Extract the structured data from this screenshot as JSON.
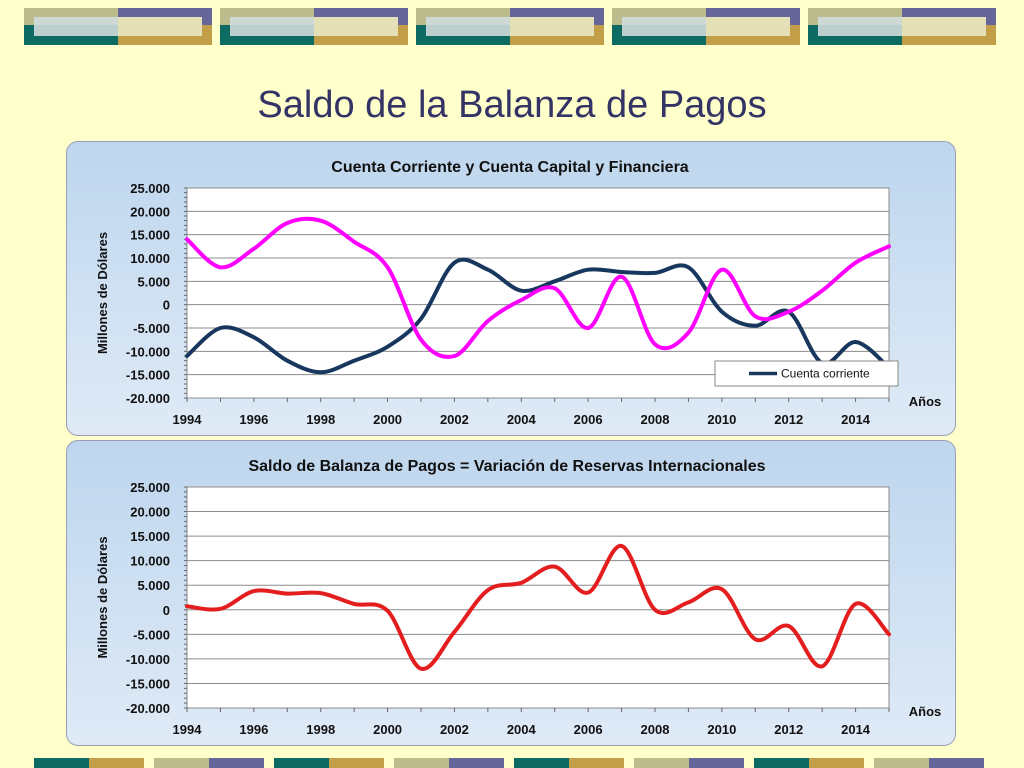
{
  "slide": {
    "title": "Saldo de la Balanza de Pagos"
  },
  "decor_colors": {
    "navy": "#66669a",
    "khaki": "#bcbc8c",
    "teal": "#0e6b64",
    "gold": "#c29e48",
    "light_blue": "#cfdcdc",
    "light_khaki": "#e6e0b4"
  },
  "chart_data": [
    {
      "type": "line",
      "title": "Cuenta Corriente y Cuenta Capital y Financiera",
      "xlabel": "Años",
      "ylabel": "Millones de Dólares",
      "xlim": [
        1994,
        2015
      ],
      "ylim": [
        -20000,
        25000
      ],
      "y_ticks": [
        25000,
        20000,
        15000,
        10000,
        5000,
        0,
        -5000,
        -10000,
        -15000,
        -20000
      ],
      "y_tick_labels": [
        "25.000",
        "20.000",
        "15.000",
        "10.000",
        "5.000",
        "0",
        "-5.000",
        "-10.000",
        "-15.000",
        "-20.000"
      ],
      "x_ticks": [
        "1994",
        "1996",
        "1998",
        "2000",
        "2002",
        "2004",
        "2006",
        "2008",
        "2010",
        "2012",
        "2014"
      ],
      "grid": true,
      "legend": "bottom-right",
      "series": [
        {
          "name": "Cuenta corriente",
          "color": "#17375e",
          "in_legend": true,
          "x": [
            1994,
            1995,
            1996,
            1997,
            1998,
            1999,
            2000,
            2001,
            2002,
            2003,
            2004,
            2005,
            2006,
            2007,
            2008,
            2009,
            2010,
            2011,
            2012,
            2013,
            2014,
            2015
          ],
          "y": [
            -11000,
            -5000,
            -7000,
            -12000,
            -14500,
            -12000,
            -9000,
            -3000,
            9000,
            7500,
            3000,
            5000,
            7500,
            7000,
            6800,
            8000,
            -1500,
            -4500,
            -1500,
            -12500,
            -8000,
            -13500
          ]
        },
        {
          "color": "#ff00ff",
          "in_legend": false,
          "x": [
            1994,
            1995,
            1996,
            1997,
            1998,
            1999,
            2000,
            2001,
            2002,
            2003,
            2004,
            2005,
            2006,
            2007,
            2008,
            2009,
            2010,
            2011,
            2012,
            2013,
            2014,
            2015
          ],
          "y": [
            14000,
            8000,
            12000,
            17500,
            18000,
            13500,
            8000,
            -7500,
            -11000,
            -3500,
            1000,
            3500,
            -5000,
            6000,
            -8500,
            -6000,
            7500,
            -2500,
            -1500,
            3000,
            9000,
            12500
          ]
        }
      ]
    },
    {
      "type": "line",
      "title": "Saldo de Balanza de Pagos = Variación de Reservas Internacionales",
      "xlabel": "Años",
      "ylabel": "Millones de Dólares",
      "xlim": [
        1994,
        2015
      ],
      "ylim": [
        -20000,
        25000
      ],
      "y_ticks": [
        25000,
        20000,
        15000,
        10000,
        5000,
        0,
        -5000,
        -10000,
        -15000,
        -20000
      ],
      "y_tick_labels": [
        "25.000",
        "20.000",
        "15.000",
        "10.000",
        "5.000",
        "0",
        "-5.000",
        "-10.000",
        "-15.000",
        "-20.000"
      ],
      "x_ticks": [
        "1994",
        "1996",
        "1998",
        "2000",
        "2002",
        "2004",
        "2006",
        "2008",
        "2010",
        "2012",
        "2014"
      ],
      "grid": true,
      "legend": "none",
      "series": [
        {
          "color": "#e41e1e",
          "in_legend": false,
          "x": [
            1994,
            1995,
            1996,
            1997,
            1998,
            1999,
            2000,
            2001,
            2002,
            2003,
            2004,
            2005,
            2006,
            2007,
            2008,
            2009,
            2010,
            2011,
            2012,
            2013,
            2014,
            2015
          ],
          "y": [
            700,
            200,
            3800,
            3300,
            3400,
            1200,
            -200,
            -12000,
            -4500,
            4000,
            5500,
            8800,
            3500,
            13000,
            0,
            1500,
            4200,
            -6000,
            -3300,
            -11500,
            1200,
            -5000
          ]
        }
      ]
    }
  ]
}
